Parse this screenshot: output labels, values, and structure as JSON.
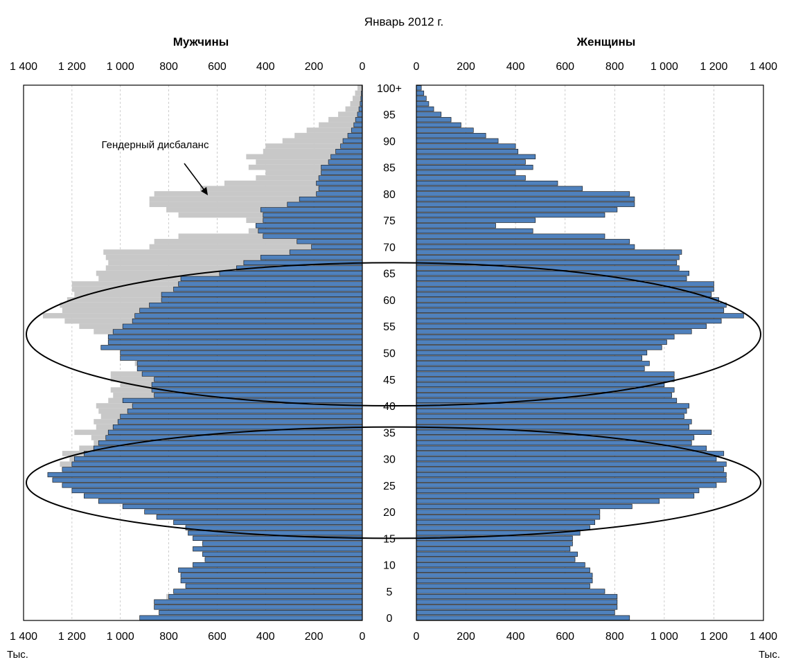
{
  "chart_data": {
    "type": "bar",
    "title": "Январь 2012 г.",
    "unit_label": "Тыс.",
    "annotation": "Гендерный дисбаланс",
    "xlim": [
      0,
      1400
    ],
    "x_ticks": [
      0,
      200,
      400,
      600,
      800,
      1000,
      1200,
      1400
    ],
    "x_tick_labels": [
      "0",
      "200",
      "400",
      "600",
      "800",
      "1 000",
      "1 200",
      "1 400"
    ],
    "age_labels": [
      {
        "age": 0,
        "label": "0"
      },
      {
        "age": 5,
        "label": "5"
      },
      {
        "age": 10,
        "label": "10"
      },
      {
        "age": 15,
        "label": "15"
      },
      {
        "age": 20,
        "label": "20"
      },
      {
        "age": 25,
        "label": "25"
      },
      {
        "age": 30,
        "label": "30"
      },
      {
        "age": 35,
        "label": "35"
      },
      {
        "age": 40,
        "label": "40"
      },
      {
        "age": 45,
        "label": "45"
      },
      {
        "age": 50,
        "label": "50"
      },
      {
        "age": 55,
        "label": "55"
      },
      {
        "age": 60,
        "label": "60"
      },
      {
        "age": 65,
        "label": "65"
      },
      {
        "age": 70,
        "label": "70"
      },
      {
        "age": 75,
        "label": "75"
      },
      {
        "age": 80,
        "label": "80"
      },
      {
        "age": 85,
        "label": "85"
      },
      {
        "age": 90,
        "label": "90"
      },
      {
        "age": 95,
        "label": "95"
      },
      {
        "age": 100,
        "label": "100+"
      }
    ],
    "ages": [
      0,
      1,
      2,
      3,
      4,
      5,
      6,
      7,
      8,
      9,
      10,
      11,
      12,
      13,
      14,
      15,
      16,
      17,
      18,
      19,
      20,
      21,
      22,
      23,
      24,
      25,
      26,
      27,
      28,
      29,
      30,
      31,
      32,
      33,
      34,
      35,
      36,
      37,
      38,
      39,
      40,
      41,
      42,
      43,
      44,
      45,
      46,
      47,
      48,
      49,
      50,
      51,
      52,
      53,
      54,
      55,
      56,
      57,
      58,
      59,
      60,
      61,
      62,
      63,
      64,
      65,
      66,
      67,
      68,
      69,
      70,
      71,
      72,
      73,
      74,
      75,
      76,
      77,
      78,
      79,
      80,
      81,
      82,
      83,
      84,
      85,
      86,
      87,
      88,
      89,
      90,
      91,
      92,
      93,
      94,
      95,
      96,
      97,
      98,
      99,
      100
    ],
    "series": [
      {
        "name": "Мужчины",
        "color": "#4f81bd",
        "values": [
          920,
          840,
          860,
          860,
          800,
          780,
          730,
          750,
          750,
          760,
          700,
          650,
          660,
          700,
          660,
          700,
          720,
          730,
          780,
          850,
          900,
          990,
          1090,
          1150,
          1200,
          1240,
          1280,
          1300,
          1240,
          1200,
          1190,
          1150,
          1110,
          1090,
          1060,
          1050,
          1030,
          1010,
          1000,
          970,
          950,
          990,
          860,
          870,
          870,
          860,
          910,
          930,
          930,
          1000,
          1000,
          1080,
          1050,
          1050,
          1030,
          990,
          950,
          940,
          920,
          880,
          830,
          830,
          780,
          760,
          750,
          590,
          520,
          490,
          420,
          300,
          210,
          270,
          410,
          430,
          440,
          410,
          410,
          420,
          310,
          260,
          190,
          180,
          190,
          180,
          170,
          170,
          140,
          130,
          110,
          90,
          80,
          60,
          45,
          35,
          28,
          20,
          14,
          9,
          6,
          4,
          2
        ]
      },
      {
        "name": "Женщины",
        "color": "#4f81bd",
        "values": [
          860,
          800,
          810,
          810,
          810,
          760,
          700,
          710,
          710,
          700,
          680,
          640,
          650,
          620,
          630,
          630,
          660,
          700,
          720,
          740,
          740,
          870,
          980,
          1120,
          1140,
          1210,
          1250,
          1250,
          1240,
          1250,
          1210,
          1240,
          1170,
          1110,
          1120,
          1190,
          1100,
          1110,
          1080,
          1090,
          1100,
          1050,
          1030,
          1040,
          1000,
          1040,
          1040,
          920,
          940,
          910,
          930,
          990,
          1010,
          1040,
          1110,
          1170,
          1230,
          1320,
          1240,
          1250,
          1220,
          1190,
          1200,
          1200,
          1090,
          1100,
          1060,
          1050,
          1060,
          1070,
          880,
          860,
          760,
          470,
          320,
          480,
          760,
          810,
          880,
          880,
          860,
          670,
          570,
          440,
          400,
          470,
          440,
          480,
          410,
          400,
          330,
          280,
          230,
          180,
          140,
          100,
          70,
          50,
          40,
          30,
          20
        ]
      }
    ],
    "gender_imbalance": {
      "name": "Гендерный дисбаланс",
      "color": "#c8c8c8"
    },
    "highlights": [
      {
        "shape": "ellipse",
        "age_range": [
          40.5,
          67.5
        ]
      },
      {
        "shape": "ellipse",
        "age_range": [
          15.5,
          36.5
        ]
      }
    ],
    "grid": true
  }
}
